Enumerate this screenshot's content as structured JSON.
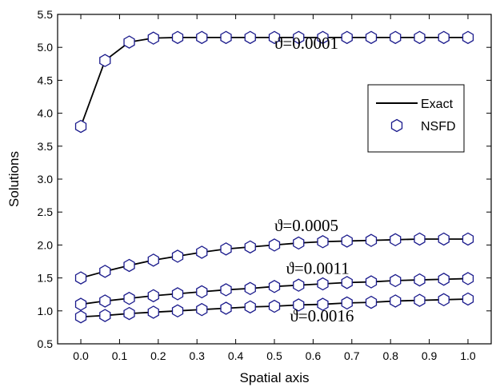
{
  "chart_data": {
    "type": "line",
    "xlabel": "Spatial axis",
    "ylabel": "Solutions",
    "xlim": [
      -0.06,
      1.06
    ],
    "ylim": [
      0.5,
      5.5
    ],
    "xticks": [
      0.0,
      0.1,
      0.2,
      0.3,
      0.4,
      0.5,
      0.6,
      0.7,
      0.8,
      0.9,
      1.0
    ],
    "xtick_labels": [
      "0.0",
      "0.1",
      "0.2",
      "0.3",
      "0.4",
      "0.5",
      "0.6",
      "0.7",
      "0.8",
      "0.9",
      "1.0"
    ],
    "yticks": [
      0.5,
      1.0,
      1.5,
      2.0,
      2.5,
      3.0,
      3.5,
      4.0,
      4.5,
      5.0,
      5.5
    ],
    "ytick_labels": [
      "0.5",
      "1.0",
      "1.5",
      "2.0",
      "2.5",
      "3.0",
      "3.5",
      "4.0",
      "4.5",
      "5.0",
      "5.5"
    ],
    "grid": false,
    "legend_position": "upper-right",
    "legend": [
      {
        "label": "Exact",
        "style": "line"
      },
      {
        "label": "NSFD",
        "style": "hexagon-marker"
      }
    ],
    "x": [
      0.0,
      0.0625,
      0.125,
      0.1875,
      0.25,
      0.3125,
      0.375,
      0.4375,
      0.5,
      0.5625,
      0.625,
      0.6875,
      0.75,
      0.8125,
      0.875,
      0.9375,
      1.0
    ],
    "series": [
      {
        "annotation": "ϑ=0.0001",
        "exact": [
          3.8,
          4.8,
          5.08,
          5.14,
          5.15,
          5.15,
          5.15,
          5.15,
          5.15,
          5.15,
          5.15,
          5.15,
          5.15,
          5.15,
          5.15,
          5.15,
          5.15
        ],
        "nsfd": [
          3.8,
          4.8,
          5.08,
          5.14,
          5.15,
          5.15,
          5.15,
          5.15,
          5.15,
          5.15,
          5.15,
          5.15,
          5.15,
          5.15,
          5.15,
          5.15,
          5.15
        ]
      },
      {
        "annotation": "ϑ=0.0005",
        "exact": [
          1.5,
          1.6,
          1.69,
          1.77,
          1.83,
          1.89,
          1.94,
          1.97,
          2.0,
          2.03,
          2.05,
          2.06,
          2.07,
          2.08,
          2.09,
          2.09,
          2.09
        ],
        "nsfd": [
          1.5,
          1.6,
          1.69,
          1.77,
          1.83,
          1.89,
          1.94,
          1.97,
          2.0,
          2.03,
          2.05,
          2.06,
          2.07,
          2.08,
          2.09,
          2.09,
          2.09
        ]
      },
      {
        "annotation": "ϑ=0.0011",
        "exact": [
          1.1,
          1.15,
          1.19,
          1.23,
          1.26,
          1.29,
          1.32,
          1.34,
          1.37,
          1.39,
          1.41,
          1.43,
          1.44,
          1.46,
          1.47,
          1.48,
          1.49
        ],
        "nsfd": [
          1.1,
          1.15,
          1.19,
          1.23,
          1.26,
          1.29,
          1.32,
          1.34,
          1.37,
          1.39,
          1.41,
          1.43,
          1.44,
          1.46,
          1.47,
          1.48,
          1.49
        ]
      },
      {
        "annotation": "ϑ=0.0016",
        "exact": [
          0.91,
          0.93,
          0.96,
          0.98,
          1.0,
          1.02,
          1.04,
          1.06,
          1.07,
          1.09,
          1.1,
          1.12,
          1.13,
          1.15,
          1.16,
          1.17,
          1.18
        ],
        "nsfd": [
          0.91,
          0.93,
          0.96,
          0.98,
          1.0,
          1.02,
          1.04,
          1.06,
          1.07,
          1.09,
          1.1,
          1.12,
          1.13,
          1.15,
          1.16,
          1.17,
          1.18
        ]
      }
    ],
    "colors": {
      "exact_line": "#000000",
      "nsfd_marker": "#1a1a8c",
      "axes": "#000000"
    }
  }
}
